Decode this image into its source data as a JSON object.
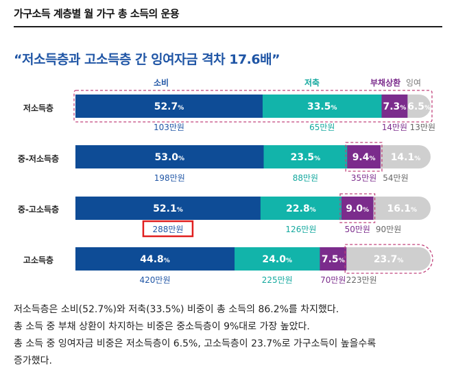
{
  "header": {
    "page_title": "가구소득 계층별 월 가구 총 소득의 운용",
    "headline": "“저소득층과 고소득층 간 잉여자금 격차 17.6배”"
  },
  "chart_data": {
    "type": "bar",
    "orientation": "horizontal",
    "stacked": true,
    "percent_stacked": true,
    "categories": [
      "저소득층",
      "중-저소득층",
      "중-고소득층",
      "고소득층"
    ],
    "series": [
      {
        "name": "소비",
        "color": "#0e4c96",
        "label_color": "#1f55a5",
        "values": [
          52.7,
          53.0,
          52.1,
          44.8
        ],
        "amounts": [
          "103만원",
          "198만원",
          "288만원",
          "420만원"
        ]
      },
      {
        "name": "저축",
        "color": "#12b4aa",
        "label_color": "#12a89e",
        "values": [
          33.5,
          23.5,
          22.8,
          24.0
        ],
        "amounts": [
          "65만원",
          "88만원",
          "126만원",
          "225만원"
        ]
      },
      {
        "name": "부채상환",
        "color": "#7b2c8c",
        "label_color": "#7b2c8c",
        "values": [
          7.3,
          9.4,
          9.0,
          7.5
        ],
        "amounts": [
          "14만원",
          "35만원",
          "50만원",
          "70만원"
        ]
      },
      {
        "name": "잉여",
        "color": "#cfcfcf",
        "label_color": "#666666",
        "values": [
          6.5,
          14.1,
          16.1,
          23.7
        ],
        "amounts": [
          "13만원",
          "54만원",
          "90만원",
          "223만원"
        ]
      }
    ],
    "value_suffix": "%",
    "highlights": [
      {
        "type": "dashed_box",
        "category": "저소득층",
        "series": "all",
        "color": "#c0407a"
      },
      {
        "type": "dashed_box",
        "category": "중-저소득층",
        "series": "부채상환",
        "color": "#c0407a"
      },
      {
        "type": "dashed_box",
        "category": "중-고소득층",
        "series": "부채상환",
        "color": "#c0407a"
      },
      {
        "type": "dashed_box",
        "category": "고소득층",
        "series": "잉여",
        "color": "#c0407a"
      },
      {
        "type": "red_box",
        "category": "중-고소득층",
        "series": "소비",
        "target": "amount_label",
        "color": "#e01e1e"
      }
    ],
    "legend_position": "top",
    "grid": false
  },
  "body": {
    "lines": [
      "저소득층은 소비(52.7%)와 저축(33.5%) 비중이 총 소득의 86.2%를 차지했다.",
      "총 소득 중 부채 상환이 차지하는 비중은 중소득층이 9%대로 가장 높았다.",
      "총 소득 중 잉여자금 비중은 저소득층이 6.5%, 고소득층이 23.7%로 가구소득이 높을수록",
      "증가했다."
    ]
  }
}
